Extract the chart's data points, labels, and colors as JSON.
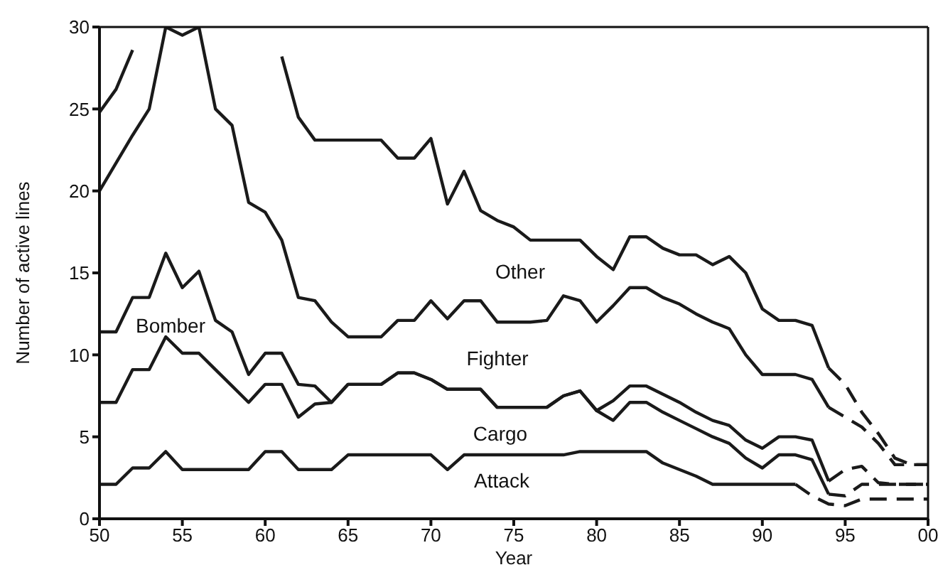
{
  "chart_data": {
    "type": "line",
    "xlabel": "Year",
    "ylabel": "Number of active lines",
    "xlim": [
      "1950",
      "2000"
    ],
    "xticks": [
      {
        "value": "1950",
        "label": "50"
      },
      {
        "value": "1955",
        "label": "55"
      },
      {
        "value": "1960",
        "label": "60"
      },
      {
        "value": "1965",
        "label": "65"
      },
      {
        "value": "1970",
        "label": "70"
      },
      {
        "value": "1975",
        "label": "75"
      },
      {
        "value": "1980",
        "label": "80"
      },
      {
        "value": "1985",
        "label": "85"
      },
      {
        "value": "1990",
        "label": "90"
      },
      {
        "value": "1995",
        "label": "95"
      },
      {
        "value": "2000",
        "label": "00"
      }
    ],
    "ylim": [
      0,
      30
    ],
    "yticks": [
      0,
      5,
      10,
      15,
      20,
      25,
      30
    ],
    "grid": false,
    "series": [
      {
        "color": "#1a1a1a",
        "line_style": "solid",
        "x": [
          "1950",
          "1951",
          "1952",
          "1953",
          "1954",
          "1955",
          "1956",
          "1957",
          "1958",
          "1959",
          "1960",
          "1961",
          "1962",
          "1963",
          "1964",
          "1965",
          "1966",
          "1967",
          "1968",
          "1969",
          "1970",
          "1971",
          "1972",
          "1973",
          "1974",
          "1975",
          "1976",
          "1977",
          "1978",
          "1979",
          "1980",
          "1981",
          "1982",
          "1983",
          "1984",
          "1985",
          "1986",
          "1987",
          "1988",
          "1989",
          "1990",
          "1991",
          "1992",
          "1993",
          "1994"
        ],
        "values": [
          24.8,
          26.2,
          28.6,
          null,
          null,
          null,
          null,
          null,
          null,
          null,
          null,
          28.2,
          24.5,
          23.1,
          23.1,
          23.1,
          23.1,
          23.1,
          22,
          22,
          23.2,
          19.2,
          21.2,
          18.8,
          18.2,
          17.8,
          17,
          17,
          17,
          17,
          16,
          15.2,
          17.2,
          17.2,
          16.5,
          16.1,
          16.1,
          15.5,
          16,
          15,
          12.8,
          12.1,
          12.1,
          11.8,
          9.2
        ]
      },
      {
        "color": "#1a1a1a",
        "line_style": "dashed",
        "x": [
          "1994",
          "1995",
          "1996",
          "1997",
          "1998",
          "1999",
          "2000"
        ],
        "values": [
          9.2,
          8.2,
          6.5,
          5.2,
          3.7,
          3.3,
          3.3
        ]
      },
      {
        "color": "#1a1a1a",
        "line_style": "solid",
        "x": [
          "1950",
          "1951",
          "1952",
          "1953",
          "1954",
          "1955",
          "1956",
          "1957",
          "1958",
          "1959",
          "1960",
          "1961",
          "1962",
          "1963",
          "1964",
          "1965",
          "1966",
          "1967",
          "1968",
          "1969",
          "1970",
          "1971",
          "1972",
          "1973",
          "1974",
          "1975",
          "1976",
          "1977",
          "1978",
          "1979",
          "1980",
          "1981",
          "1982",
          "1983",
          "1984",
          "1985",
          "1986",
          "1987",
          "1988",
          "1989",
          "1990",
          "1991",
          "1992",
          "1993",
          "1994"
        ],
        "values": [
          20,
          21.7,
          23.4,
          25,
          30,
          29.5,
          30,
          25,
          24,
          19.3,
          18.7,
          17,
          13.5,
          13.3,
          12,
          11.1,
          11.1,
          11.1,
          12.1,
          12.1,
          13.3,
          12.2,
          13.3,
          13.3,
          12,
          12,
          12,
          12.1,
          13.6,
          13.3,
          12,
          13,
          14.1,
          14.1,
          13.5,
          13.1,
          12.5,
          12,
          11.6,
          10,
          8.8,
          8.8,
          8.8,
          8.5,
          6.8
        ]
      },
      {
        "color": "#1a1a1a",
        "line_style": "dashed",
        "x": [
          "1994",
          "1995",
          "1996",
          "1997",
          "1998",
          "1999",
          "2000"
        ],
        "values": [
          6.8,
          6.2,
          5.6,
          4.6,
          3.3,
          3.3,
          3.3
        ]
      },
      {
        "color": "#1a1a1a",
        "line_style": "solid",
        "x": [
          "1950",
          "1951",
          "1952",
          "1953",
          "1954",
          "1955",
          "1956",
          "1957",
          "1958",
          "1959",
          "1960",
          "1961",
          "1962",
          "1963",
          "1964",
          "1965",
          "1966",
          "1967",
          "1968",
          "1969",
          "1970",
          "1971",
          "1972",
          "1973",
          "1974",
          "1975",
          "1976",
          "1977",
          "1978",
          "1979",
          "1980",
          "1981",
          "1982",
          "1983",
          "1984",
          "1985",
          "1986",
          "1987",
          "1988",
          "1989",
          "1990",
          "1991",
          "1992",
          "1993",
          "1994"
        ],
        "values": [
          11.4,
          11.4,
          13.5,
          13.5,
          16.2,
          14.1,
          15.1,
          12.1,
          11.4,
          8.8,
          10.1,
          10.1,
          8.2,
          8.1,
          7.1,
          8.2,
          8.2,
          8.2,
          8.9,
          8.9,
          8.5,
          7.9,
          7.9,
          7.9,
          6.8,
          6.8,
          6.8,
          6.8,
          7.5,
          7.8,
          6.6,
          7.2,
          8.1,
          8.1,
          7.6,
          7.1,
          6.5,
          6,
          5.7,
          4.8,
          4.3,
          5,
          5,
          4.8,
          2.3
        ]
      },
      {
        "color": "#1a1a1a",
        "line_style": "dashed",
        "x": [
          "1994",
          "1995",
          "1996",
          "1997",
          "1998",
          "1999",
          "2000"
        ],
        "values": [
          2.3,
          3,
          3.2,
          2.2,
          2.1,
          2.1,
          2.1
        ]
      },
      {
        "color": "#1a1a1a",
        "line_style": "solid",
        "x": [
          "1950",
          "1951",
          "1952",
          "1953",
          "1954",
          "1955",
          "1956",
          "1957",
          "1958",
          "1959",
          "1960",
          "1961",
          "1962",
          "1963",
          "1964",
          "1965",
          "1966",
          "1967",
          "1968",
          "1969",
          "1970",
          "1971",
          "1972",
          "1973",
          "1974",
          "1975",
          "1976",
          "1977",
          "1978",
          "1979",
          "1980",
          "1981",
          "1982",
          "1983",
          "1984",
          "1985",
          "1986",
          "1987",
          "1988",
          "1989",
          "1990",
          "1991",
          "1992",
          "1993",
          "1994"
        ],
        "values": [
          7.1,
          7.1,
          9.1,
          9.1,
          11.1,
          10.1,
          10.1,
          9.1,
          8.1,
          7.1,
          8.2,
          8.2,
          6.2,
          7,
          7.1,
          8.2,
          8.2,
          8.2,
          8.9,
          8.9,
          8.5,
          7.9,
          7.9,
          7.9,
          6.8,
          6.8,
          6.8,
          6.8,
          7.5,
          7.8,
          6.6,
          6,
          7.1,
          7.1,
          6.5,
          6,
          5.5,
          5,
          4.6,
          3.7,
          3.1,
          3.9,
          3.9,
          3.6,
          1.5
        ]
      },
      {
        "color": "#1a1a1a",
        "line_style": "dashed",
        "x": [
          "1994",
          "1995",
          "1996",
          "1997",
          "1998",
          "1999",
          "2000"
        ],
        "values": [
          1.5,
          1.4,
          2.1,
          2.1,
          2.1,
          2.1,
          2.1
        ]
      },
      {
        "color": "#1a1a1a",
        "line_style": "solid",
        "x": [
          "1950",
          "1951",
          "1952",
          "1953",
          "1954",
          "1955",
          "1956",
          "1957",
          "1958",
          "1959",
          "1960",
          "1961",
          "1962",
          "1963",
          "1964",
          "1965",
          "1966",
          "1967",
          "1968",
          "1969",
          "1970",
          "1971",
          "1972",
          "1973",
          "1974",
          "1975",
          "1976",
          "1977",
          "1978",
          "1979",
          "1980",
          "1981",
          "1982",
          "1983",
          "1984",
          "1985",
          "1986",
          "1987",
          "1988",
          "1989",
          "1990",
          "1991",
          "1992"
        ],
        "values": [
          2.1,
          2.1,
          3.1,
          3.1,
          4.1,
          3,
          3,
          3,
          3,
          3,
          4.1,
          4.1,
          3,
          3,
          3,
          3.9,
          3.9,
          3.9,
          3.9,
          3.9,
          3.9,
          3,
          3.9,
          3.9,
          3.9,
          3.9,
          3.9,
          3.9,
          3.9,
          4.1,
          4.1,
          4.1,
          4.1,
          4.1,
          3.4,
          3,
          2.6,
          2.1,
          2.1,
          2.1,
          2.1,
          2.1,
          2.1
        ]
      },
      {
        "color": "#1a1a1a",
        "line_style": "dashed",
        "x": [
          "1992",
          "1993",
          "1994",
          "1995",
          "1996",
          "1997",
          "1998",
          "1999",
          "2000"
        ],
        "values": [
          2.1,
          1.4,
          0.9,
          0.8,
          1.2,
          1.2,
          1.2,
          1.2,
          1.2
        ]
      }
    ],
    "annotations": [
      "Other",
      "Fighter",
      "Bomber",
      "Cargo",
      "Attack"
    ]
  }
}
